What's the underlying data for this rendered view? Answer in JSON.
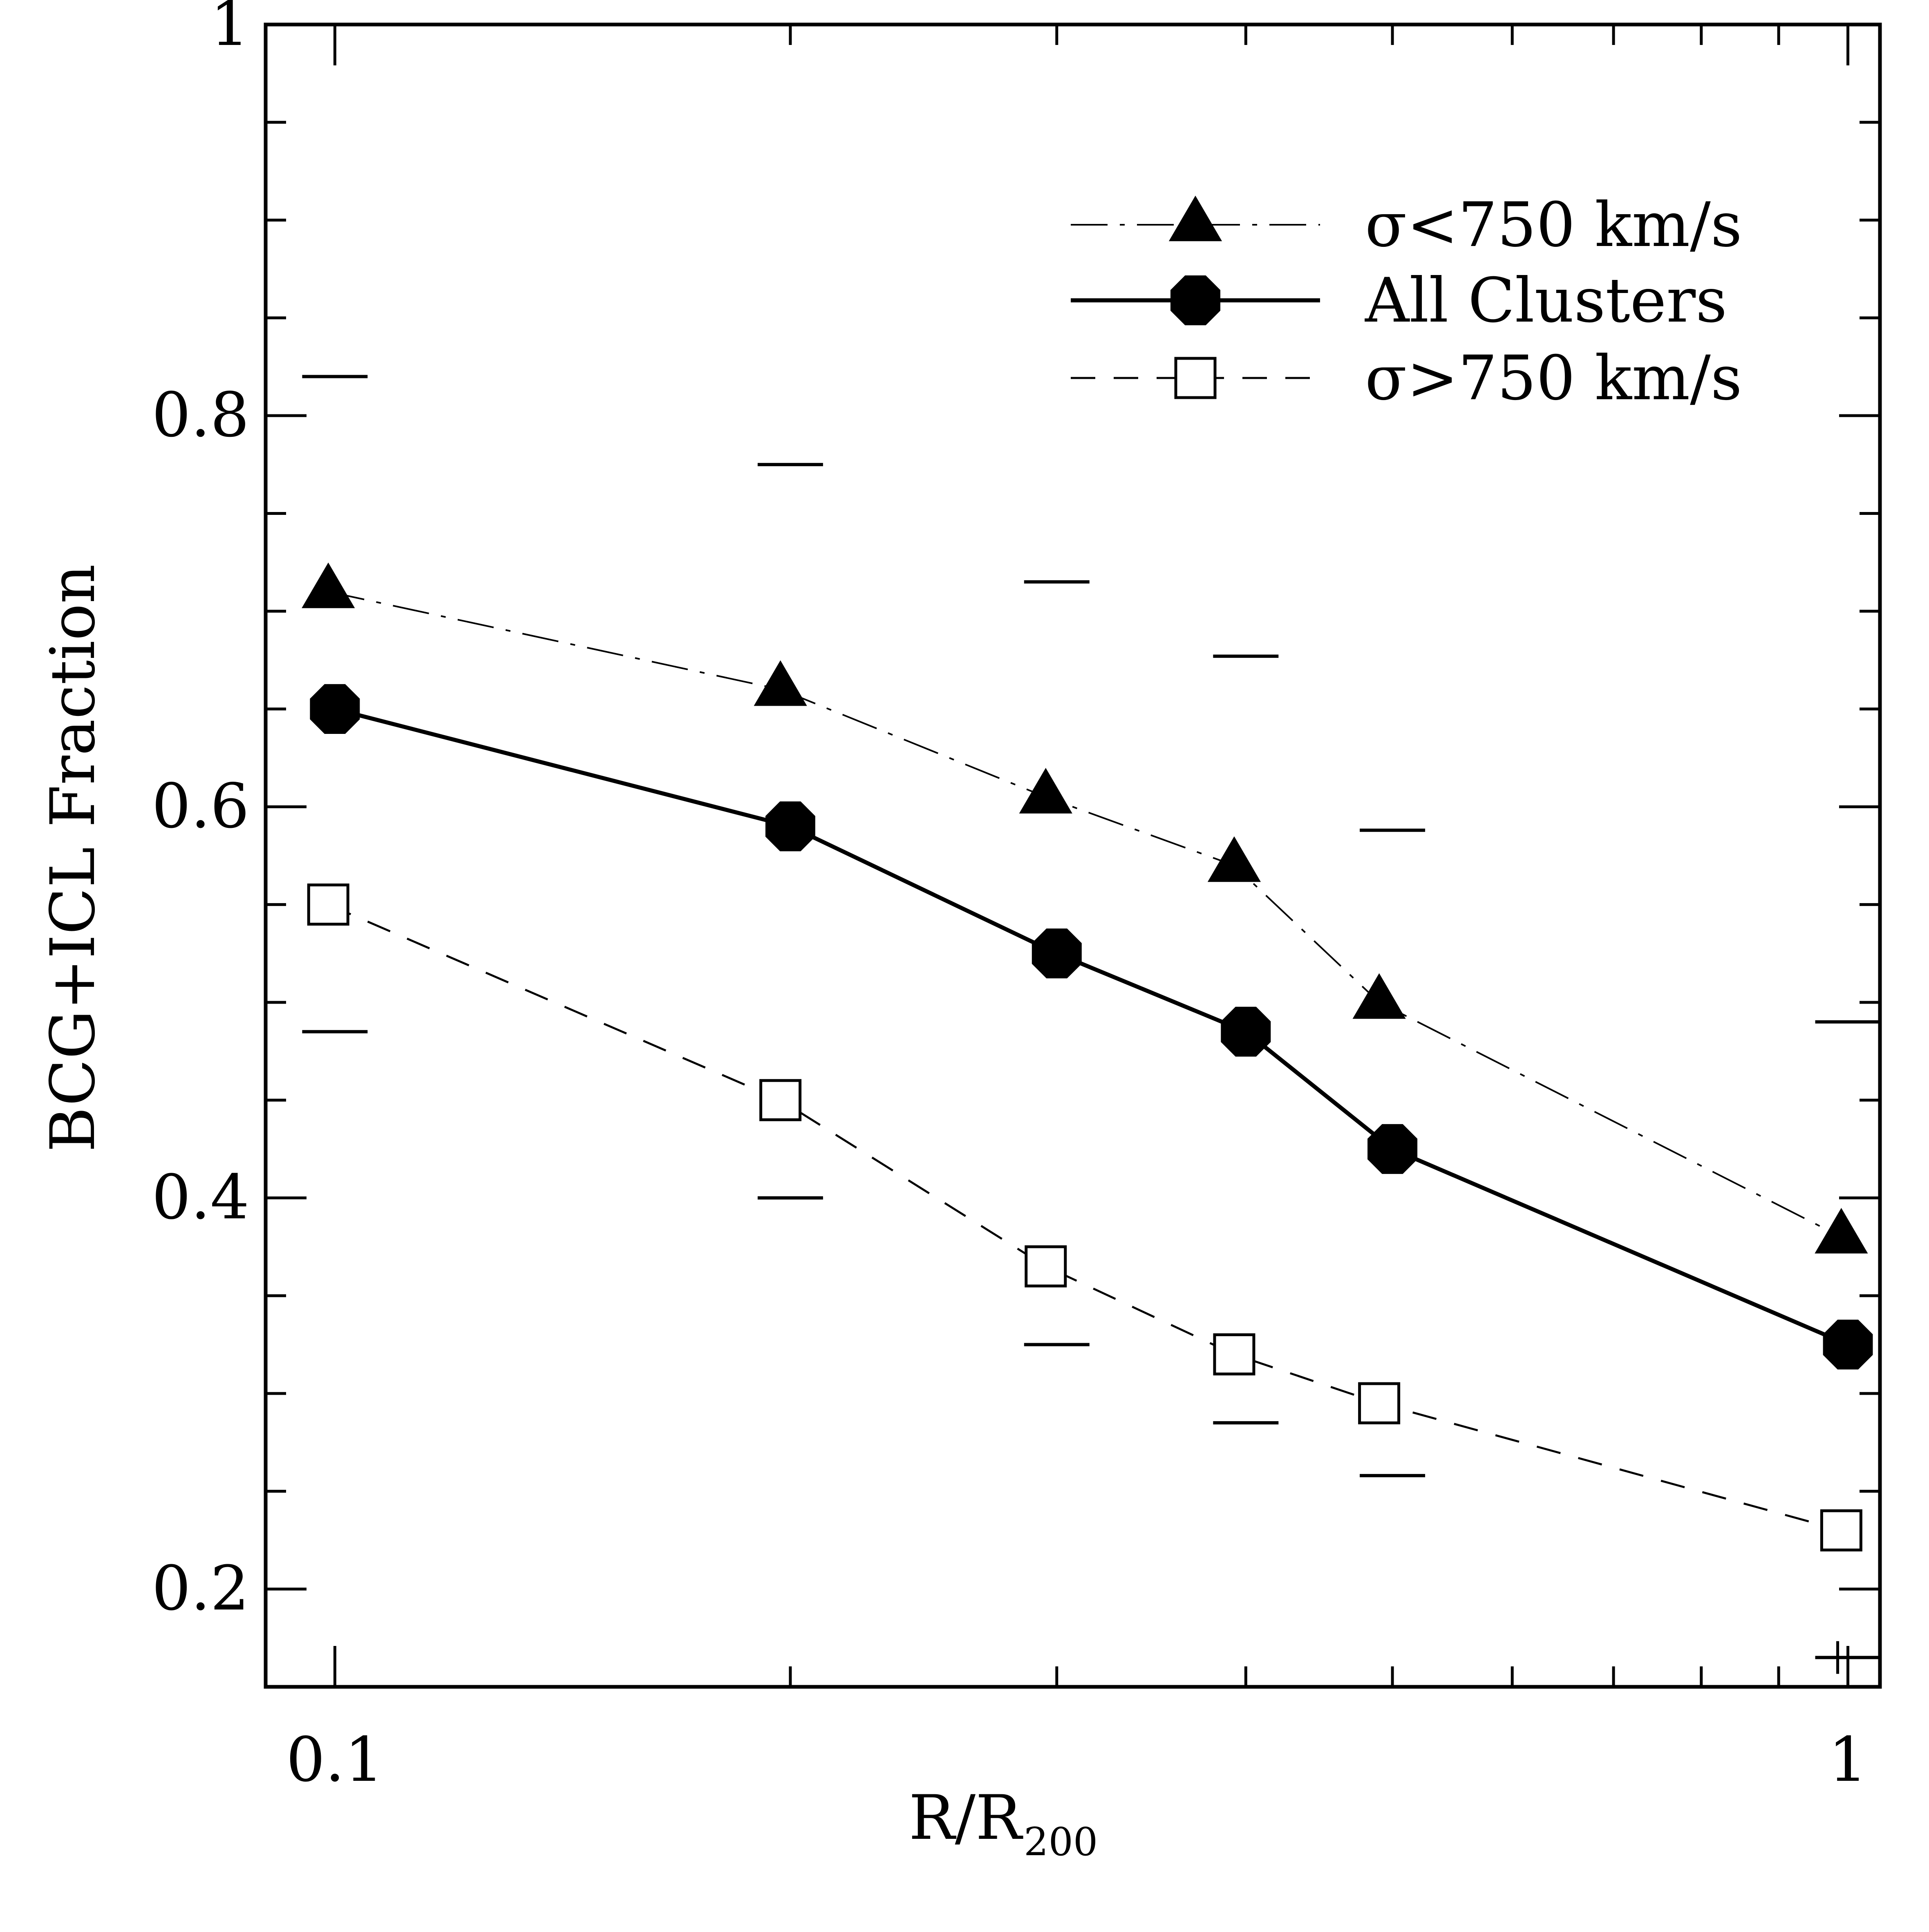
{
  "chart_data": {
    "type": "line",
    "title": "",
    "xlabel": "R/R",
    "xlabel_subscript": "200",
    "ylabel": "BCG+ICL Fraction",
    "xscale": "log",
    "xlim": [
      0.09,
      1.05
    ],
    "ylim": [
      0.15,
      1.0
    ],
    "x_ticks": [
      {
        "value": 0.1,
        "label": "0.1"
      },
      {
        "value": 1,
        "label": "1"
      }
    ],
    "y_ticks": [
      {
        "value": 0.2,
        "label": "0.2"
      },
      {
        "value": 0.4,
        "label": "0.4"
      },
      {
        "value": 0.6,
        "label": "0.6"
      },
      {
        "value": 0.8,
        "label": "0.8"
      },
      {
        "value": 1.0,
        "label": "1"
      }
    ],
    "legend_position": "top-right",
    "series": [
      {
        "name": "σ<750 km/s",
        "marker": "triangle-filled",
        "line": "dash-dot",
        "x": [
          0.099,
          0.197,
          0.295,
          0.393,
          0.49,
          0.99
        ],
        "y": [
          0.71,
          0.66,
          0.605,
          0.57,
          0.5,
          0.38
        ]
      },
      {
        "name": "All Clusters",
        "marker": "octagon-filled",
        "line": "solid",
        "x": [
          0.1,
          0.2,
          0.3,
          0.4,
          0.5,
          1.0
        ],
        "y": [
          0.65,
          0.59,
          0.525,
          0.485,
          0.425,
          0.325
        ]
      },
      {
        "name": "σ>750 km/s",
        "marker": "square-open",
        "line": "dashed",
        "x": [
          0.099,
          0.197,
          0.295,
          0.393,
          0.49,
          0.99
        ],
        "y": [
          0.55,
          0.45,
          0.365,
          0.32,
          0.295,
          0.23
        ]
      }
    ],
    "error_caps": [
      {
        "x": 0.1,
        "upper": 0.82,
        "lower": 0.485
      },
      {
        "x": 0.2,
        "upper": 0.775,
        "lower": 0.4
      },
      {
        "x": 0.3,
        "upper": 0.715,
        "lower": 0.325
      },
      {
        "x": 0.4,
        "upper": 0.677,
        "lower": 0.285
      },
      {
        "x": 0.5,
        "upper": 0.588,
        "lower": 0.258
      },
      {
        "x": 1.0,
        "upper": 0.49,
        "lower": 0.165
      }
    ]
  }
}
